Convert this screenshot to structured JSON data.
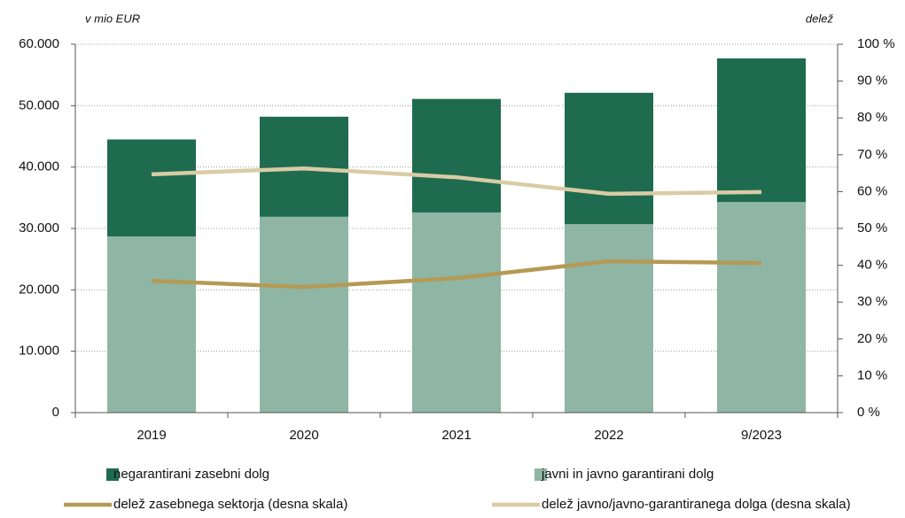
{
  "chart_data": {
    "type": "bar",
    "y_label": "v mio EUR",
    "y2_label": "delež",
    "categories": [
      "2019",
      "2020",
      "2021",
      "2022",
      "9/2023"
    ],
    "series": [
      {
        "name": "negarantirani zasebni dolg",
        "color": "#1f6b50",
        "type": "bar",
        "values": [
          15800,
          16300,
          18500,
          21400,
          23400
        ]
      },
      {
        "name": "javni in javno garantirani dolg",
        "color": "#8fb5a5",
        "type": "bar",
        "values": [
          28700,
          31900,
          32600,
          30700,
          34300
        ]
      },
      {
        "name": "delež zasebnega sektorja (desna skala)",
        "color": "#b59a55",
        "type": "line",
        "axis": "y2",
        "values": [
          35.8,
          34.1,
          36.5,
          41.1,
          40.6
        ]
      },
      {
        "name": "delež javno/javno-garantiranega dolga (desna skala)",
        "color": "#d9cca5",
        "type": "line",
        "axis": "y2",
        "values": [
          64.7,
          66.3,
          63.9,
          59.4,
          59.9
        ]
      }
    ],
    "ylim": [
      0,
      60000
    ],
    "yticks": [
      0,
      {
        "value": 10000,
        "label": "10.000"
      },
      {
        "value": 20000,
        "label": "20.000"
      },
      {
        "value": 30000,
        "label": "30.000"
      },
      {
        "value": 40000,
        "label": "40.000"
      },
      {
        "value": 50000,
        "label": "50.000"
      },
      {
        "value": 60000,
        "label": "60.000"
      }
    ],
    "y2lim": [
      0,
      100
    ],
    "y2ticks": [
      {
        "value": 0,
        "label": "0 %"
      },
      {
        "value": 10,
        "label": "10 %"
      },
      {
        "value": 20,
        "label": "20 %"
      },
      {
        "value": 30,
        "label": "30 %"
      },
      {
        "value": 40,
        "label": "40 %"
      },
      {
        "value": 50,
        "label": "50 %"
      },
      {
        "value": 60,
        "label": "60 %"
      },
      {
        "value": 70,
        "label": "70 %"
      },
      {
        "value": 80,
        "label": "80 %"
      },
      {
        "value": 90,
        "label": "90 %"
      },
      {
        "value": 100,
        "label": "100 %"
      }
    ],
    "grid": true
  }
}
